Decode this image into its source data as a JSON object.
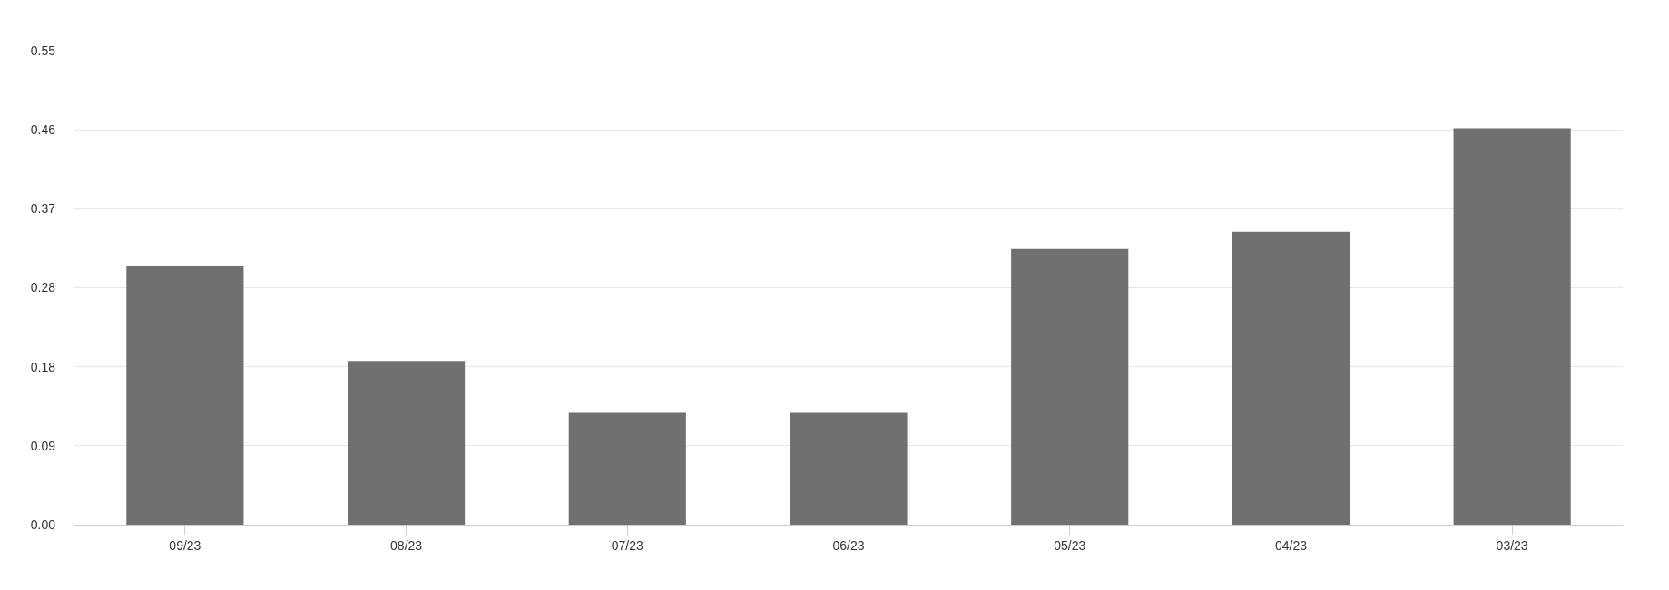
{
  "chart_data": {
    "type": "bar",
    "categories": [
      "09/23",
      "08/23",
      "07/23",
      "06/23",
      "05/23",
      "04/23",
      "03/23"
    ],
    "values": [
      0.3,
      0.19,
      0.13,
      0.13,
      0.32,
      0.34,
      0.46
    ],
    "color": "#707070",
    "ylim": [
      0,
      0.55
    ],
    "yticks": [
      {
        "value": 0,
        "label": "0.00"
      },
      {
        "value": 0.09167,
        "label": "0.09"
      },
      {
        "value": 0.18333,
        "label": "0.18"
      },
      {
        "value": 0.275,
        "label": "0.28"
      },
      {
        "value": 0.36667,
        "label": "0.37"
      },
      {
        "value": 0.45833,
        "label": "0.46"
      },
      {
        "value": 0.55,
        "label": "0.55"
      }
    ],
    "grid": "y"
  }
}
